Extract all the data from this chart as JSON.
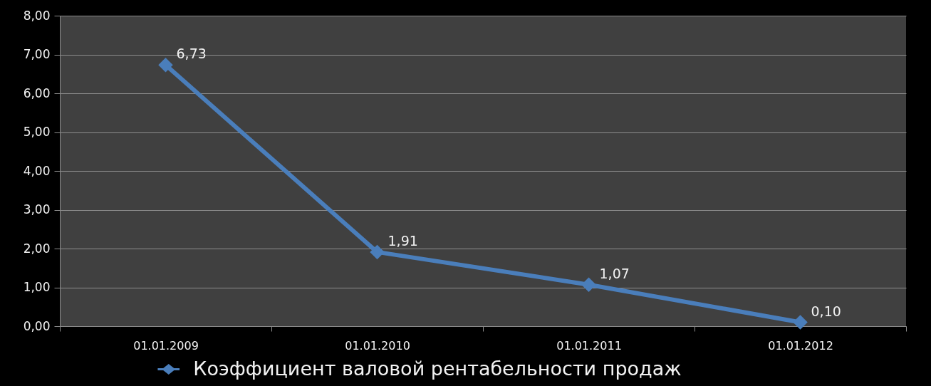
{
  "chart_data": {
    "type": "line",
    "categories": [
      "01.01.2009",
      "01.01.2010",
      "01.01.2011",
      "01.01.2012"
    ],
    "series": [
      {
        "name": "Коэффициент валовой рентабельности продаж",
        "color": "#4a7ebb",
        "values": [
          6.73,
          1.91,
          1.07,
          0.1
        ],
        "value_labels": [
          "6,73",
          "1,91",
          "1,07",
          "0,10"
        ]
      }
    ],
    "ylim": [
      0,
      8
    ],
    "yticks": [
      {
        "value": 0,
        "label": "0,00"
      },
      {
        "value": 1,
        "label": "1,00"
      },
      {
        "value": 2,
        "label": "2,00"
      },
      {
        "value": 3,
        "label": "3,00"
      },
      {
        "value": 4,
        "label": "4,00"
      },
      {
        "value": 5,
        "label": "5,00"
      },
      {
        "value": 6,
        "label": "6,00"
      },
      {
        "value": 7,
        "label": "7,00"
      },
      {
        "value": 8,
        "label": "8,00"
      }
    ],
    "grid": "y",
    "legend": "bottom",
    "marker": "diamond",
    "line_style": "solid"
  }
}
